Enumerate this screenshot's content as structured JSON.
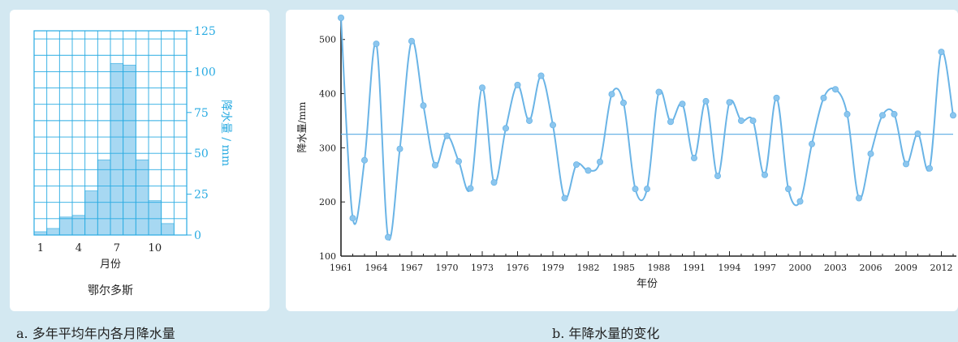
{
  "chart_data": [
    {
      "type": "bar",
      "categories": [
        "1",
        "2",
        "3",
        "4",
        "5",
        "6",
        "7",
        "8",
        "9",
        "10",
        "11",
        "12"
      ],
      "values": [
        2,
        4,
        11,
        12,
        27,
        46,
        105,
        104,
        46,
        21,
        7,
        0
      ],
      "xtick_labels": [
        "1",
        "4",
        "7",
        "10"
      ],
      "xtick_positions": [
        "1",
        "4",
        "7",
        "10"
      ],
      "yticks": [
        0,
        25,
        50,
        75,
        100,
        125
      ],
      "ylim": [
        0,
        125
      ],
      "xlabel": "月份",
      "ylabel": "降水量 / mm",
      "location_label": "鄂尔多斯",
      "grid": true,
      "colors": {
        "axis": "#29abe2",
        "bar": "#a7d8f2",
        "bar_edge": "#4fb8e6",
        "grid": "#29abe2"
      }
    },
    {
      "type": "line",
      "x": [
        1961,
        1962,
        1963,
        1964,
        1965,
        1966,
        1967,
        1968,
        1969,
        1970,
        1971,
        1972,
        1973,
        1974,
        1975,
        1976,
        1977,
        1978,
        1979,
        1980,
        1981,
        1982,
        1983,
        1984,
        1985,
        1986,
        1987,
        1988,
        1989,
        1990,
        1991,
        1992,
        1993,
        1994,
        1995,
        1996,
        1997,
        1998,
        1999,
        2000,
        2001,
        2002,
        2003,
        2004,
        2005,
        2006,
        2007,
        2008,
        2009,
        2010,
        2011,
        2012,
        2013
      ],
      "values": [
        540,
        170,
        277,
        492,
        135,
        298,
        497,
        378,
        268,
        322,
        275,
        225,
        411,
        236,
        336,
        416,
        350,
        433,
        342,
        207,
        269,
        258,
        274,
        399,
        383,
        224,
        224,
        403,
        348,
        381,
        281,
        386,
        248,
        384,
        350,
        350,
        250,
        392,
        224,
        201,
        307,
        392,
        408,
        362,
        207,
        289,
        360,
        362,
        270,
        326,
        262,
        477,
        360
      ],
      "mean_line": 325,
      "xtick_labels": [
        "1961",
        "1964",
        "1967",
        "1970",
        "1973",
        "1976",
        "1979",
        "1982",
        "1985",
        "1988",
        "1991",
        "1994",
        "1997",
        "2000",
        "2003",
        "2006",
        "2009",
        "2012"
      ],
      "yticks": [
        100,
        200,
        300,
        400,
        500
      ],
      "ylim": [
        100,
        540
      ],
      "xlabel": "年份",
      "ylabel": "降水量/mm",
      "grid": false,
      "colors": {
        "line": "#6ab4e6",
        "marker": "#8cc6ee",
        "mean": "#6ab4e6",
        "axis": "#222222"
      }
    }
  ],
  "captions": {
    "a": "a. 多年平均年内各月降水量",
    "b": "b. 年降水量的变化"
  }
}
